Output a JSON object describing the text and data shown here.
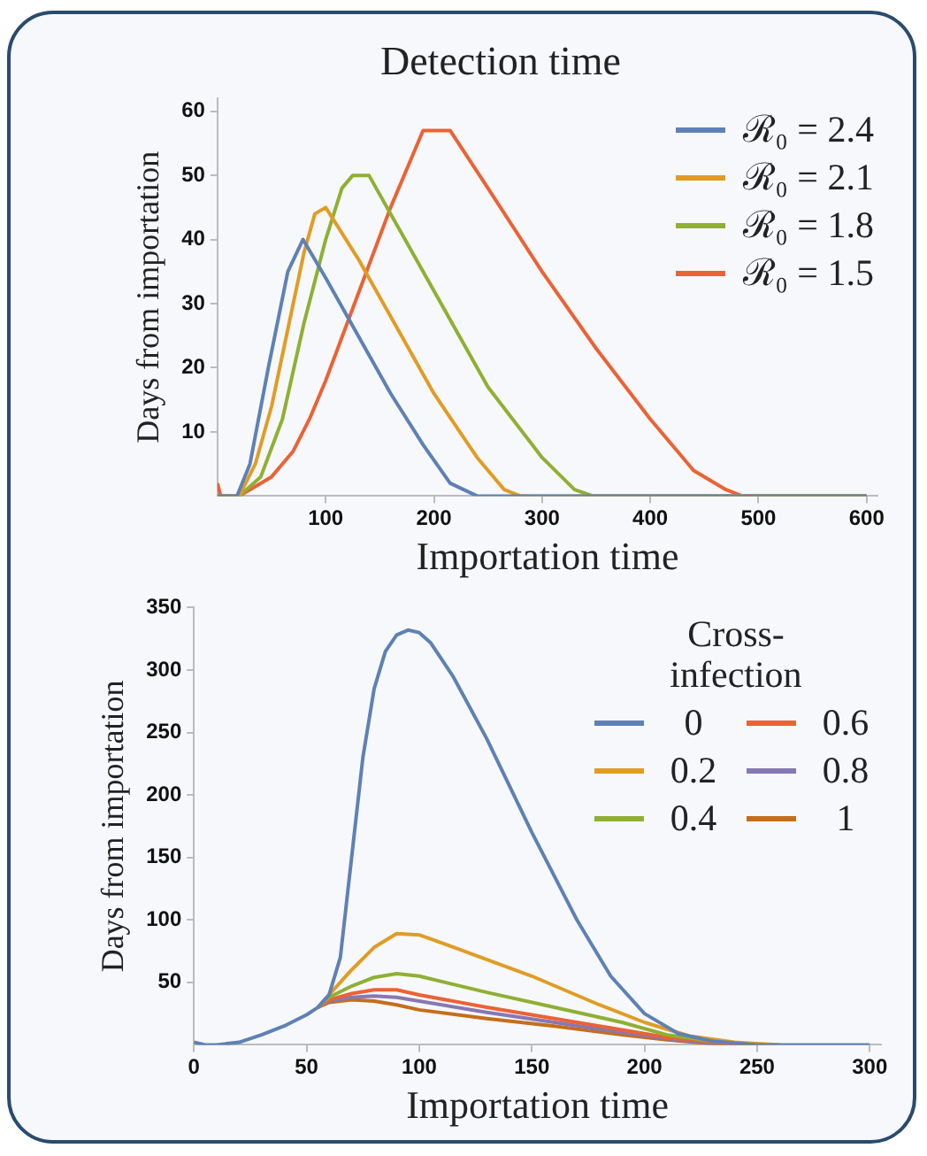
{
  "chart_data": [
    {
      "type": "line",
      "title": "Detection time",
      "xlabel": "Importation time",
      "ylabel": "Days from importation",
      "xlim": [
        0,
        610
      ],
      "ylim": [
        0,
        62
      ],
      "xticks": [
        100,
        200,
        300,
        400,
        500,
        600
      ],
      "yticks": [
        10,
        20,
        30,
        40,
        50,
        60
      ],
      "grid": false,
      "legend": "top right",
      "marker": "none",
      "line_style": "solid",
      "series": [
        {
          "name": "ℛ₀ = 2.4",
          "color": "#5e81b5",
          "x": [
            0,
            18,
            30,
            47,
            65,
            79,
            100,
            130,
            160,
            190,
            215,
            240,
            600
          ],
          "values": [
            0,
            0,
            5,
            20,
            35,
            40,
            34,
            25,
            16,
            8,
            2,
            0,
            0
          ]
        },
        {
          "name": "ℛ₀ = 2.1",
          "color": "#e19c24",
          "x": [
            0,
            20,
            35,
            50,
            65,
            80,
            90,
            100,
            130,
            160,
            200,
            240,
            265,
            280,
            600
          ],
          "values": [
            0,
            0,
            5,
            14,
            26,
            38,
            44,
            45,
            37,
            28,
            16,
            6,
            1,
            0,
            0
          ]
        },
        {
          "name": "ℛ₀ = 1.8",
          "color": "#8fb032",
          "x": [
            0,
            20,
            40,
            60,
            80,
            100,
            115,
            125,
            140,
            170,
            200,
            250,
            300,
            330,
            347,
            600
          ],
          "values": [
            0,
            0,
            3,
            12,
            27,
            40,
            48,
            50,
            50,
            41,
            32,
            17,
            6,
            1,
            0,
            0
          ]
        },
        {
          "name": "ℛ₀ = 1.5",
          "color": "#eb6235",
          "x": [
            0,
            3,
            20,
            30,
            50,
            70,
            85,
            100,
            120,
            140,
            160,
            180,
            190,
            215,
            250,
            300,
            350,
            400,
            440,
            470,
            485,
            600
          ],
          "values": [
            2,
            0,
            0,
            1,
            3,
            7,
            12,
            18,
            27,
            36,
            45,
            53,
            57,
            57,
            48,
            35,
            23,
            12,
            4,
            1,
            0,
            0
          ]
        }
      ]
    },
    {
      "type": "line",
      "xlabel": "Importation time",
      "ylabel": "Days from importation",
      "legend_title": "Cross-infection",
      "xlim": [
        0,
        305
      ],
      "ylim": [
        0,
        350
      ],
      "xticks": [
        0,
        50,
        100,
        150,
        200,
        250,
        300
      ],
      "yticks": [
        50,
        100,
        150,
        200,
        250,
        300,
        350
      ],
      "grid": false,
      "legend": "top right",
      "marker": "none",
      "line_style": "solid",
      "series": [
        {
          "name": "0",
          "color": "#5e81b5",
          "x": [
            0,
            5,
            10,
            20,
            30,
            40,
            50,
            55,
            60,
            65,
            70,
            75,
            80,
            85,
            90,
            95,
            100,
            105,
            115,
            130,
            150,
            170,
            185,
            200,
            215,
            230,
            250,
            300
          ],
          "values": [
            2,
            0,
            0,
            2,
            8,
            15,
            24,
            30,
            40,
            70,
            150,
            230,
            285,
            315,
            328,
            332,
            330,
            322,
            295,
            245,
            170,
            100,
            55,
            25,
            9,
            3,
            0,
            0
          ]
        },
        {
          "name": "0.2",
          "color": "#e19c24",
          "x": [
            55,
            60,
            70,
            80,
            90,
            100,
            120,
            150,
            180,
            200,
            220,
            240,
            260
          ],
          "values": [
            30,
            40,
            60,
            78,
            89,
            88,
            75,
            55,
            32,
            18,
            7,
            2,
            0
          ]
        },
        {
          "name": "0.4",
          "color": "#8fb032",
          "x": [
            55,
            60,
            70,
            80,
            90,
            100,
            130,
            160,
            190,
            210,
            230,
            250
          ],
          "values": [
            30,
            38,
            47,
            54,
            57,
            55,
            42,
            30,
            18,
            8,
            3,
            0
          ]
        },
        {
          "name": "0.6",
          "color": "#eb6235",
          "x": [
            55,
            60,
            70,
            80,
            90,
            100,
            130,
            160,
            190,
            210,
            230,
            250
          ],
          "values": [
            30,
            36,
            41,
            44,
            44,
            40,
            30,
            21,
            12,
            6,
            2,
            0
          ]
        },
        {
          "name": "0.8",
          "color": "#8778b3",
          "x": [
            55,
            60,
            70,
            80,
            90,
            100,
            130,
            160,
            190,
            210,
            230,
            250
          ],
          "values": [
            30,
            35,
            38,
            39,
            38,
            35,
            26,
            18,
            10,
            5,
            1,
            0
          ]
        },
        {
          "name": "1",
          "color": "#c56e1a",
          "x": [
            55,
            60,
            70,
            80,
            90,
            100,
            130,
            160,
            190,
            210,
            230,
            250
          ],
          "values": [
            30,
            34,
            36,
            35,
            32,
            28,
            21,
            15,
            8,
            4,
            1,
            0
          ]
        }
      ]
    }
  ]
}
